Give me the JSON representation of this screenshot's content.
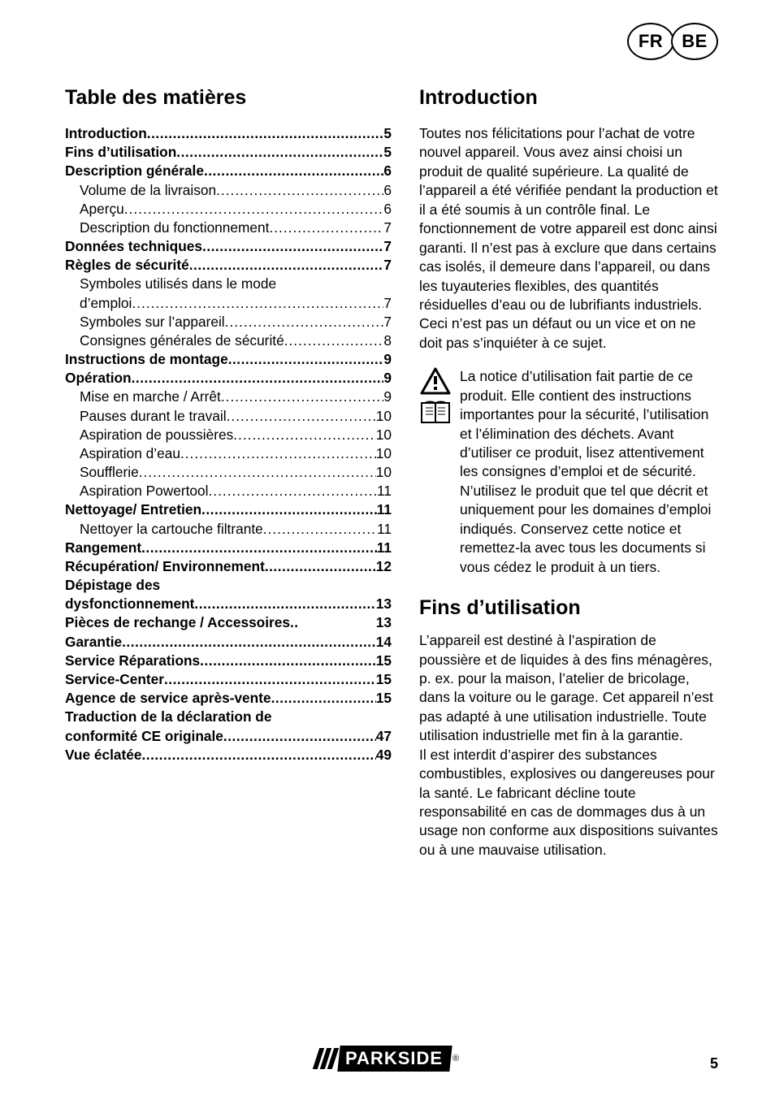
{
  "lang_badges": [
    "FR",
    "BE"
  ],
  "page_number": "5",
  "logo_text": "PARKSIDE",
  "colors": {
    "text": "#000000",
    "background": "#ffffff",
    "logo_bg": "#000000",
    "logo_fg": "#ffffff"
  },
  "left": {
    "title": "Table des matières",
    "toc": [
      {
        "label": "Introduction",
        "page": "5",
        "bold": true,
        "sub": false
      },
      {
        "label": "Fins d’utilisation",
        "page": "5",
        "bold": true,
        "sub": false
      },
      {
        "label": "Description générale",
        "page": "6",
        "bold": true,
        "sub": false
      },
      {
        "label": "Volume de la livraison",
        "page": "6",
        "bold": false,
        "sub": true
      },
      {
        "label": "Aperçu",
        "page": "6",
        "bold": false,
        "sub": true
      },
      {
        "label": "Description du fonctionnement",
        "page": "7",
        "bold": false,
        "sub": true
      },
      {
        "label": "Données techniques",
        "page": "7",
        "bold": true,
        "sub": false
      },
      {
        "label": "Règles de sécurité",
        "page": "7",
        "bold": true,
        "sub": false
      },
      {
        "label": "Symboles utilisés dans le mode d’emploi",
        "page": "7",
        "bold": false,
        "sub": true,
        "wrap": true
      },
      {
        "label": "Symboles sur l’appareil",
        "page": "7",
        "bold": false,
        "sub": true
      },
      {
        "label": "Consignes générales de sécurité",
        "page": "8",
        "bold": false,
        "sub": true
      },
      {
        "label": "Instructions de montage",
        "page": "9",
        "bold": true,
        "sub": false
      },
      {
        "label": "Opération",
        "page": "9",
        "bold": true,
        "sub": false
      },
      {
        "label": "Mise en marche / Arrêt",
        "page": "9",
        "bold": false,
        "sub": true
      },
      {
        "label": "Pauses durant le travail",
        "page": "10",
        "bold": false,
        "sub": true
      },
      {
        "label": "Aspiration de poussières",
        "page": "10",
        "bold": false,
        "sub": true
      },
      {
        "label": "Aspiration d’eau",
        "page": "10",
        "bold": false,
        "sub": true
      },
      {
        "label": "Soufflerie",
        "page": "10",
        "bold": false,
        "sub": true
      },
      {
        "label": "Aspiration Powertool",
        "page": "11",
        "bold": false,
        "sub": true
      },
      {
        "label": "Nettoyage/ Entretien",
        "page": "11",
        "bold": true,
        "sub": false
      },
      {
        "label": "Nettoyer la cartouche filtrante",
        "page": "11",
        "bold": false,
        "sub": true
      },
      {
        "label": "Rangement",
        "page": "11",
        "bold": true,
        "sub": false
      },
      {
        "label": "Récupération/ Environnement",
        "page": "12",
        "bold": true,
        "sub": false
      },
      {
        "label": "Dépistage des dysfonctionnement",
        "page": "13",
        "bold": true,
        "sub": false,
        "wrap": true
      },
      {
        "label": "Pièces de rechange / Accessoires",
        "page": "13",
        "bold": true,
        "sub": false,
        "tight": true
      },
      {
        "label": "Garantie",
        "page": "14",
        "bold": true,
        "sub": false
      },
      {
        "label": "Service Réparations",
        "page": "15",
        "bold": true,
        "sub": false
      },
      {
        "label": "Service-Center",
        "page": "15",
        "bold": true,
        "sub": false
      },
      {
        "label": "Agence de service après-vente",
        "page": "15",
        "bold": true,
        "sub": false
      },
      {
        "label": "Traduction de la déclaration de conformité CE originale",
        "page": "47",
        "bold": true,
        "sub": false,
        "wrap": true
      },
      {
        "label": "Vue éclatée",
        "page": "49",
        "bold": true,
        "sub": false
      }
    ]
  },
  "right": {
    "intro_title": "Introduction",
    "intro_body": "Toutes nos félicitations pour l’achat de votre nouvel appareil. Vous avez ainsi choisi un produit de qualité supérieure. La qualité de l’appareil a été vérifiée pendant la production et il a été soumis à un contrôle final. Le fonctionnement de votre appareil est donc ainsi garanti. Il n’est pas à exclure que dans certains cas isolés, il demeure dans l’appareil, ou dans les tuyauteries flexibles, des quantités résiduelles d’eau ou de lubrifiants industriels. Ceci n’est pas un défaut ou un vice et on ne doit pas s’inquiéter à ce sujet.",
    "notice_body": "La notice d’utilisation fait partie de ce produit. Elle contient des instructions importantes pour la sécurité, l’utilisation et l’élimination des déchets. Avant d’utiliser ce produit, lisez attentivement les consignes d’emploi et de sécurité. N’utilisez le produit que tel que décrit et uniquement pour les domaines d’emploi indiqués. Conservez cette notice et remettez-la avec tous les documents si vous cédez le produit à un tiers.",
    "fins_title": "Fins d’utilisation",
    "fins_body": "L’appareil est destiné à l’aspiration de poussière et de liquides à des fins ménagères, p. ex. pour la maison, l’atelier de bricolage, dans la voiture ou le garage. Cet appareil n’est pas adapté à une utilisation industrielle. Toute utilisation industrielle met fin à la garantie.\nIl est interdit d’aspirer des substances combustibles, explosives ou dangereuses pour la santé. Le fabricant décline toute responsabilité en cas de dommages dus à un usage non conforme aux dispositions suivantes ou à une mauvaise utilisation."
  }
}
